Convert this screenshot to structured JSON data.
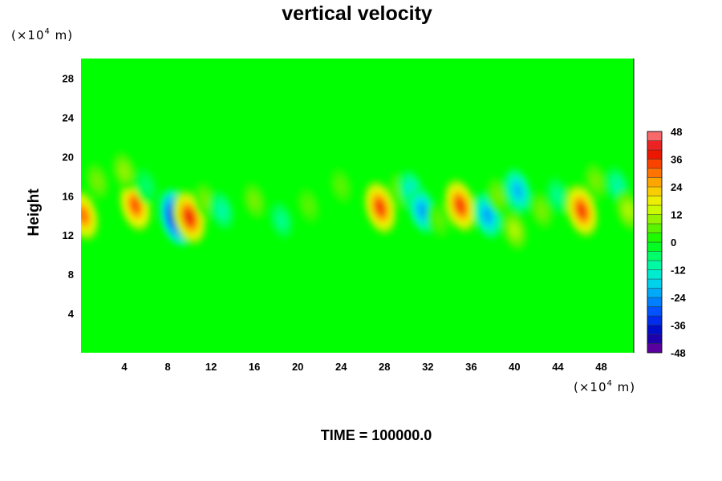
{
  "chart_data": {
    "type": "heatmap",
    "title": "vertical velocity",
    "ylabel": "Height",
    "x_unit_base": "(×10",
    "x_unit_exp": "4",
    "x_unit_tail": " m)",
    "y_unit_base": "(×10",
    "y_unit_exp": "4",
    "y_unit_tail": " m)",
    "xlim": [
      0,
      51
    ],
    "ylim": [
      0,
      30
    ],
    "x_ticks": [
      4,
      8,
      12,
      16,
      20,
      24,
      28,
      32,
      36,
      40,
      44,
      48
    ],
    "y_ticks": [
      4,
      8,
      12,
      16,
      20,
      24,
      28
    ],
    "colorbar": {
      "min": -48,
      "max": 48,
      "step": 4,
      "ticks": [
        48,
        36,
        24,
        12,
        0,
        -12,
        -24,
        -36,
        -48
      ]
    },
    "background_value": 0,
    "features": [
      {
        "x": 0.2,
        "y": 14.0,
        "value": 30
      },
      {
        "x": 1.5,
        "y": 17.5,
        "value": 8
      },
      {
        "x": 5.0,
        "y": 15.0,
        "value": 32
      },
      {
        "x": 4.0,
        "y": 18.5,
        "value": 10
      },
      {
        "x": 6.0,
        "y": 17.0,
        "value": -6
      },
      {
        "x": 8.8,
        "y": 13.8,
        "value": -40
      },
      {
        "x": 10.0,
        "y": 13.8,
        "value": 36
      },
      {
        "x": 11.5,
        "y": 15.5,
        "value": 8
      },
      {
        "x": 13.0,
        "y": 14.5,
        "value": -10
      },
      {
        "x": 16.0,
        "y": 15.5,
        "value": 8
      },
      {
        "x": 18.5,
        "y": 13.5,
        "value": -8
      },
      {
        "x": 21.0,
        "y": 15.0,
        "value": 6
      },
      {
        "x": 24.0,
        "y": 17.0,
        "value": 6
      },
      {
        "x": 27.6,
        "y": 14.8,
        "value": 34
      },
      {
        "x": 29.5,
        "y": 16.5,
        "value": 8
      },
      {
        "x": 30.5,
        "y": 16.5,
        "value": -14
      },
      {
        "x": 31.5,
        "y": 14.5,
        "value": -22
      },
      {
        "x": 33.0,
        "y": 13.5,
        "value": 6
      },
      {
        "x": 35.0,
        "y": 15.0,
        "value": 34
      },
      {
        "x": 37.5,
        "y": 14.0,
        "value": -22
      },
      {
        "x": 38.5,
        "y": 16.0,
        "value": 8
      },
      {
        "x": 40.3,
        "y": 16.5,
        "value": -20
      },
      {
        "x": 40.0,
        "y": 12.5,
        "value": 12
      },
      {
        "x": 42.5,
        "y": 14.5,
        "value": 8
      },
      {
        "x": 44.0,
        "y": 16.0,
        "value": -8
      },
      {
        "x": 46.2,
        "y": 14.5,
        "value": 34
      },
      {
        "x": 47.5,
        "y": 17.5,
        "value": 8
      },
      {
        "x": 49.5,
        "y": 17.0,
        "value": -10
      },
      {
        "x": 50.5,
        "y": 14.5,
        "value": 12
      }
    ]
  },
  "footer": {
    "time_label": "TIME = 100000.0"
  }
}
